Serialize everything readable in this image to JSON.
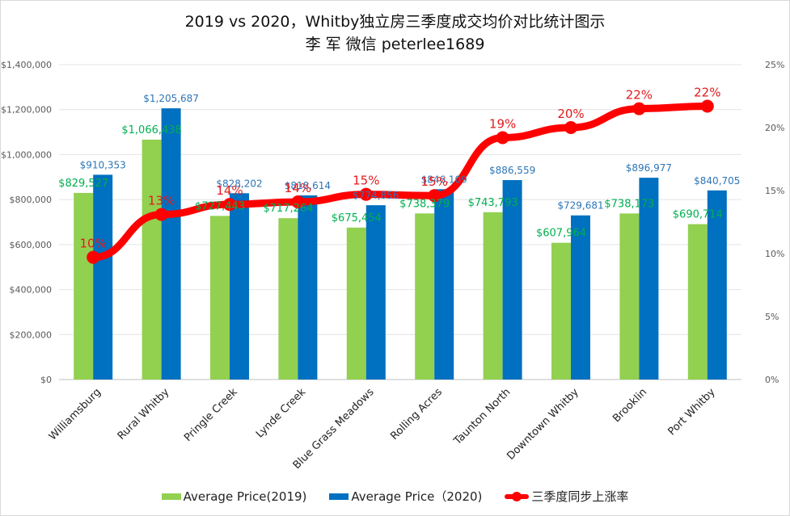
{
  "chart_data": {
    "type": "bar",
    "title": "2019 vs 2020，Whitby独立房三季度成交均价对比统计图示",
    "subtitle": "李 军  微信  peterlee1689",
    "categories": [
      "Williamsburg",
      "Rural Whitby",
      "Pringle Creek",
      "Lynde Creek",
      "Blue Grass Meadows",
      "Rolling Acres",
      "Taunton North",
      "Downtown Whitby",
      "Brooklin",
      "Port Whitby"
    ],
    "series": [
      {
        "name": "Average Price(2019)",
        "type": "bar",
        "axis": "left",
        "color": "#92d050",
        "label_color": "#00b050",
        "values": [
          829527,
          1066438,
          727443,
          717264,
          675454,
          738379,
          743793,
          607964,
          738173,
          690714
        ],
        "labels": [
          "$829,527",
          "$1,066,438",
          "$727,443",
          "$717,264",
          "$675,454",
          "$738,379",
          "$743,793",
          "$607,964",
          "$738,173",
          "$690,714"
        ]
      },
      {
        "name": "Average Price（2020)",
        "type": "bar",
        "axis": "left",
        "color": "#0070c0",
        "label_color": "#2e75b6",
        "values": [
          910353,
          1205687,
          828202,
          818614,
          774856,
          846109,
          886559,
          729681,
          896977,
          840705
        ],
        "labels": [
          "$910,353",
          "$1,205,687",
          "$828,202",
          "$818,614",
          "$774,856",
          "$846,109",
          "$886,559",
          "$729,681",
          "$896,977",
          "$840,705"
        ]
      },
      {
        "name": "三季度同步上涨率",
        "type": "line",
        "axis": "right",
        "color": "#ff0000",
        "label_color": "#e31a1c",
        "values": [
          9.7,
          13.1,
          13.9,
          14.1,
          14.7,
          14.6,
          19.2,
          20.0,
          21.5,
          21.7
        ],
        "labels": [
          "10%",
          "13%",
          "14%",
          "14%",
          "15%",
          "15%",
          "19%",
          "20%",
          "22%",
          "22%"
        ]
      }
    ],
    "y_left": {
      "ylim": [
        0,
        1400000
      ],
      "ticks": [
        0,
        200000,
        400000,
        600000,
        800000,
        1000000,
        1200000,
        1400000
      ],
      "tick_labels": [
        "$0",
        "$200,000",
        "$400,000",
        "$600,000",
        "$800,000",
        "$1,000,000",
        "$1,200,000",
        "$1,400,000"
      ]
    },
    "y_right": {
      "ylim": [
        0,
        25
      ],
      "ticks": [
        0,
        5,
        10,
        15,
        20,
        25
      ],
      "tick_labels": [
        "0%",
        "5%",
        "10%",
        "15%",
        "20%",
        "25%"
      ]
    },
    "xlabel": "",
    "ylabel": "",
    "grid": true,
    "legend": "bottom"
  },
  "legend": {
    "items": [
      "Average Price(2019)",
      "Average Price（2020)",
      "三季度同步上涨率"
    ]
  }
}
